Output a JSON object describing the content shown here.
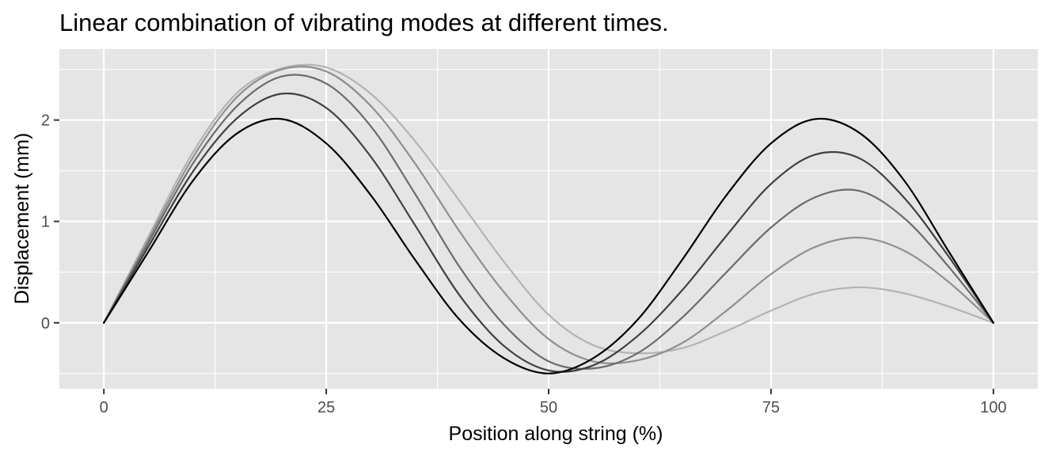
{
  "chart_data": {
    "type": "line",
    "title": "Linear combination of vibrating modes at different times.",
    "xlabel": "Position along string (%)",
    "ylabel": "Displacement (mm)",
    "xlim": [
      -5,
      105
    ],
    "ylim": [
      -0.65,
      2.7
    ],
    "x_ticks": [
      0,
      25,
      50,
      75,
      100
    ],
    "y_ticks": [
      0,
      1,
      2
    ],
    "grid": true,
    "legend": "none",
    "x": [
      0,
      5,
      10,
      15,
      20,
      25,
      30,
      35,
      40,
      45,
      50,
      55,
      60,
      65,
      70,
      75,
      80,
      85,
      90,
      95,
      100
    ],
    "series": [
      {
        "color": "#000000",
        "values": [
          0.0,
          0.7,
          1.4,
          1.87,
          2.01,
          1.77,
          1.26,
          0.62,
          0.03,
          -0.35,
          -0.5,
          -0.35,
          0.03,
          0.62,
          1.26,
          1.77,
          2.01,
          1.87,
          1.4,
          0.7,
          0.0
        ]
      },
      {
        "color": "#404040",
        "values": [
          0.0,
          0.75,
          1.49,
          2.02,
          2.26,
          2.12,
          1.64,
          0.96,
          0.27,
          -0.23,
          -0.47,
          -0.42,
          -0.13,
          0.32,
          0.86,
          1.37,
          1.66,
          1.62,
          1.23,
          0.65,
          0.0
        ]
      },
      {
        "color": "#6b6b6b",
        "values": [
          0.0,
          0.79,
          1.57,
          2.14,
          2.43,
          2.36,
          1.94,
          1.27,
          0.55,
          -0.02,
          -0.38,
          -0.45,
          -0.3,
          0.05,
          0.5,
          0.94,
          1.24,
          1.3,
          1.03,
          0.55,
          0.0
        ]
      },
      {
        "color": "#8f8f8f",
        "values": [
          0.0,
          0.82,
          1.63,
          2.23,
          2.5,
          2.48,
          2.14,
          1.57,
          0.9,
          0.3,
          -0.16,
          -0.38,
          -0.37,
          -0.2,
          0.12,
          0.48,
          0.75,
          0.84,
          0.71,
          0.4,
          0.0
        ]
      },
      {
        "color": "#b3b3b3",
        "values": [
          0.0,
          0.85,
          1.68,
          2.27,
          2.51,
          2.52,
          2.26,
          1.79,
          1.2,
          0.6,
          0.08,
          -0.22,
          -0.3,
          -0.25,
          -0.08,
          0.12,
          0.29,
          0.35,
          0.29,
          0.16,
          0.0
        ]
      }
    ]
  }
}
